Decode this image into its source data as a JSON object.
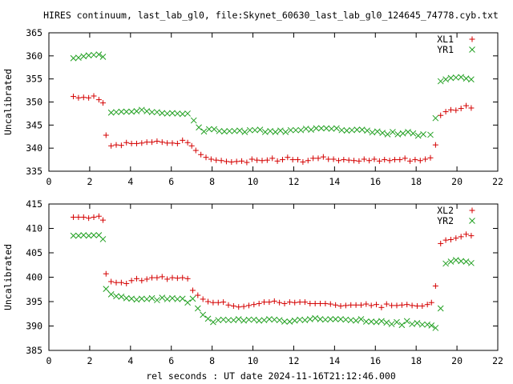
{
  "title": "HIRES continuum, last_lab_gl0, file:Skynet_60630_last_lab_gl0_124645_74778.cyb.txt",
  "xlabel": "rel seconds : UT date 2024-11-16T21:12:46.000",
  "colors": {
    "xl": "#d40000",
    "yr": "#22a022",
    "axis": "#000000",
    "background": "#ffffff"
  },
  "chart_data": [
    {
      "type": "scatter",
      "ylabel": "Uncalibrated",
      "xlim": [
        0,
        22
      ],
      "ylim": [
        335,
        365
      ],
      "xticks": [
        0,
        2,
        4,
        6,
        8,
        10,
        12,
        14,
        16,
        18,
        20,
        22
      ],
      "yticks": [
        335,
        340,
        345,
        350,
        355,
        360,
        365
      ],
      "grid": false,
      "legend": "top-right",
      "series": [
        {
          "name": "XL1",
          "marker": "+",
          "color": "#d40000",
          "x": [
            1.2,
            1.45,
            1.7,
            1.95,
            2.2,
            2.45,
            2.65,
            2.8,
            3.05,
            3.3,
            3.55,
            3.8,
            4.05,
            4.3,
            4.55,
            4.8,
            5.05,
            5.3,
            5.55,
            5.8,
            6.05,
            6.3,
            6.55,
            6.8,
            7.0,
            7.2,
            7.45,
            7.7,
            7.95,
            8.2,
            8.45,
            8.7,
            8.95,
            9.2,
            9.45,
            9.7,
            9.95,
            10.2,
            10.45,
            10.7,
            10.95,
            11.2,
            11.45,
            11.7,
            11.95,
            12.2,
            12.45,
            12.7,
            12.95,
            13.2,
            13.45,
            13.7,
            13.95,
            14.2,
            14.45,
            14.7,
            14.95,
            15.2,
            15.45,
            15.7,
            15.95,
            16.2,
            16.45,
            16.7,
            16.95,
            17.2,
            17.45,
            17.7,
            17.95,
            18.2,
            18.45,
            18.7,
            18.95,
            19.2,
            19.45,
            19.7,
            19.95,
            20.2,
            20.45,
            20.7
          ],
          "y": [
            351.2,
            350.9,
            351.0,
            350.9,
            351.3,
            350.5,
            349.8,
            342.8,
            340.5,
            340.7,
            340.6,
            341.2,
            341.0,
            341.0,
            341.1,
            341.3,
            341.3,
            341.5,
            341.3,
            341.1,
            341.1,
            341.0,
            341.7,
            341.2,
            340.5,
            339.5,
            338.6,
            338.0,
            337.6,
            337.4,
            337.3,
            337.1,
            337.0,
            337.1,
            337.2,
            336.9,
            337.6,
            337.4,
            337.3,
            337.4,
            337.8,
            337.2,
            337.5,
            338.0,
            337.5,
            337.5,
            337.0,
            337.3,
            337.8,
            337.8,
            338.1,
            337.6,
            337.6,
            337.3,
            337.5,
            337.4,
            337.3,
            337.2,
            337.6,
            337.3,
            337.6,
            337.2,
            337.5,
            337.3,
            337.5,
            337.5,
            337.8,
            337.2,
            337.5,
            337.3,
            337.6,
            337.9,
            340.7,
            347.1,
            347.9,
            348.3,
            348.2,
            348.6,
            349.2,
            348.7
          ]
        },
        {
          "name": "YR1",
          "marker": "x",
          "color": "#22a022",
          "x": [
            1.2,
            1.45,
            1.7,
            1.95,
            2.2,
            2.45,
            2.65,
            3.05,
            3.3,
            3.55,
            3.8,
            4.05,
            4.3,
            4.55,
            4.8,
            5.05,
            5.3,
            5.55,
            5.8,
            6.05,
            6.3,
            6.55,
            6.8,
            7.1,
            7.35,
            7.6,
            7.85,
            8.1,
            8.35,
            8.6,
            8.85,
            9.1,
            9.35,
            9.6,
            9.85,
            10.1,
            10.35,
            10.6,
            10.85,
            11.1,
            11.35,
            11.6,
            11.85,
            12.1,
            12.35,
            12.6,
            12.85,
            13.1,
            13.35,
            13.6,
            13.85,
            14.1,
            14.35,
            14.6,
            14.85,
            15.1,
            15.35,
            15.6,
            15.85,
            16.1,
            16.35,
            16.6,
            16.85,
            17.1,
            17.35,
            17.6,
            17.85,
            18.1,
            18.35,
            18.7,
            18.95,
            19.2,
            19.45,
            19.7,
            19.95,
            20.2,
            20.45,
            20.7
          ],
          "y": [
            359.5,
            359.6,
            359.9,
            360.1,
            360.2,
            360.3,
            359.8,
            347.7,
            347.8,
            347.9,
            347.9,
            347.9,
            348.0,
            348.3,
            348.0,
            347.8,
            347.8,
            347.6,
            347.5,
            347.6,
            347.5,
            347.4,
            347.5,
            346.0,
            344.5,
            343.6,
            344.1,
            344.1,
            343.7,
            343.6,
            343.7,
            343.7,
            343.8,
            343.5,
            343.9,
            343.9,
            344.0,
            343.5,
            343.7,
            343.5,
            343.8,
            343.5,
            343.9,
            343.9,
            343.9,
            344.2,
            344.0,
            344.3,
            344.3,
            344.3,
            344.2,
            344.3,
            343.9,
            343.8,
            343.9,
            344.0,
            344.0,
            343.8,
            343.4,
            343.6,
            343.3,
            343.0,
            343.5,
            343.0,
            343.2,
            343.5,
            343.2,
            342.7,
            343.0,
            342.9,
            346.5,
            354.5,
            354.9,
            355.2,
            355.3,
            355.4,
            355.1,
            354.9
          ]
        }
      ]
    },
    {
      "type": "scatter",
      "ylabel": "Uncalibrated",
      "xlim": [
        0,
        22
      ],
      "ylim": [
        385,
        415
      ],
      "xticks": [
        0,
        2,
        4,
        6,
        8,
        10,
        12,
        14,
        16,
        18,
        20,
        22
      ],
      "yticks": [
        385,
        390,
        395,
        400,
        405,
        410,
        415
      ],
      "grid": false,
      "legend": "top-right",
      "series": [
        {
          "name": "XL2",
          "marker": "+",
          "color": "#d40000",
          "x": [
            1.2,
            1.45,
            1.7,
            1.95,
            2.2,
            2.45,
            2.65,
            2.8,
            3.05,
            3.3,
            3.55,
            3.8,
            4.05,
            4.3,
            4.55,
            4.8,
            5.05,
            5.3,
            5.55,
            5.8,
            6.05,
            6.3,
            6.55,
            6.8,
            7.05,
            7.3,
            7.55,
            7.8,
            8.05,
            8.3,
            8.55,
            8.8,
            9.05,
            9.3,
            9.55,
            9.8,
            10.05,
            10.3,
            10.55,
            10.8,
            11.05,
            11.3,
            11.55,
            11.8,
            12.05,
            12.3,
            12.55,
            12.8,
            13.05,
            13.3,
            13.55,
            13.8,
            14.05,
            14.3,
            14.55,
            14.8,
            15.05,
            15.3,
            15.55,
            15.8,
            16.05,
            16.3,
            16.55,
            16.8,
            17.05,
            17.3,
            17.55,
            17.8,
            18.05,
            18.3,
            18.55,
            18.75,
            18.95,
            19.2,
            19.45,
            19.7,
            19.95,
            20.2,
            20.45,
            20.7
          ],
          "y": [
            412.3,
            412.3,
            412.3,
            412.1,
            412.3,
            412.5,
            411.7,
            400.7,
            399.1,
            398.9,
            398.9,
            398.7,
            399.3,
            399.7,
            399.3,
            399.6,
            399.9,
            399.9,
            400.1,
            399.6,
            399.9,
            399.8,
            399.9,
            399.7,
            397.3,
            396.3,
            395.5,
            395.0,
            394.8,
            394.8,
            394.9,
            394.3,
            394.1,
            393.9,
            394.0,
            394.2,
            394.4,
            394.6,
            394.9,
            394.9,
            395.1,
            394.8,
            394.6,
            394.9,
            394.8,
            394.9,
            394.9,
            394.6,
            394.6,
            394.6,
            394.6,
            394.5,
            394.3,
            394.1,
            394.2,
            394.3,
            394.3,
            394.3,
            394.5,
            394.2,
            394.4,
            393.8,
            394.5,
            394.2,
            394.2,
            394.3,
            394.4,
            394.2,
            394.1,
            394.1,
            394.4,
            394.8,
            398.2,
            406.9,
            407.6,
            407.7,
            408.0,
            408.3,
            408.8,
            408.5
          ]
        },
        {
          "name": "YR2",
          "marker": "x",
          "color": "#22a022",
          "x": [
            1.2,
            1.45,
            1.7,
            1.95,
            2.2,
            2.45,
            2.65,
            2.8,
            3.05,
            3.3,
            3.55,
            3.8,
            4.05,
            4.3,
            4.55,
            4.8,
            5.05,
            5.3,
            5.55,
            5.8,
            6.05,
            6.3,
            6.55,
            6.8,
            7.05,
            7.3,
            7.55,
            7.8,
            8.05,
            8.3,
            8.55,
            8.8,
            9.05,
            9.3,
            9.55,
            9.8,
            10.05,
            10.3,
            10.55,
            10.8,
            11.05,
            11.3,
            11.55,
            11.8,
            12.05,
            12.3,
            12.55,
            12.8,
            13.05,
            13.3,
            13.55,
            13.8,
            14.05,
            14.3,
            14.55,
            14.8,
            15.05,
            15.3,
            15.55,
            15.8,
            16.05,
            16.3,
            16.55,
            16.8,
            17.05,
            17.3,
            17.55,
            17.8,
            18.05,
            18.3,
            18.55,
            18.75,
            18.95,
            19.2,
            19.45,
            19.7,
            19.95,
            20.2,
            20.45,
            20.7
          ],
          "y": [
            408.5,
            408.5,
            408.6,
            408.5,
            408.6,
            408.6,
            407.8,
            397.6,
            396.5,
            396.1,
            396.0,
            395.7,
            395.6,
            395.4,
            395.6,
            395.5,
            395.7,
            395.3,
            395.8,
            395.5,
            395.7,
            395.5,
            395.6,
            394.8,
            395.6,
            393.6,
            392.3,
            391.5,
            390.8,
            391.2,
            391.3,
            391.2,
            391.2,
            391.4,
            391.1,
            391.3,
            391.3,
            391.1,
            391.2,
            391.4,
            391.3,
            391.2,
            390.9,
            390.9,
            391.1,
            391.3,
            391.2,
            391.4,
            391.6,
            391.4,
            391.3,
            391.4,
            391.4,
            391.4,
            391.3,
            391.2,
            391.1,
            391.4,
            390.9,
            390.9,
            390.8,
            391.0,
            390.7,
            390.4,
            390.8,
            390.2,
            391.0,
            390.4,
            390.6,
            390.3,
            390.3,
            390.1,
            389.6,
            393.6,
            402.8,
            403.2,
            403.5,
            403.3,
            403.2,
            402.9
          ]
        }
      ]
    }
  ]
}
